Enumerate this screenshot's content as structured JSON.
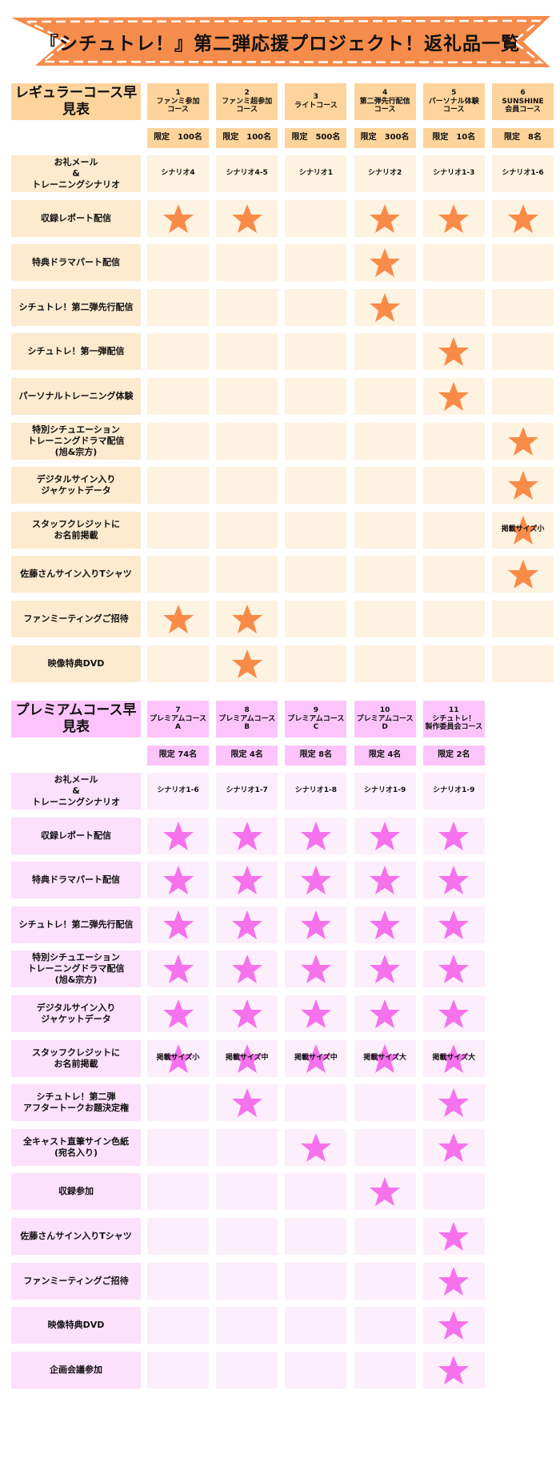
{
  "title": "『シチュトレ！』第二弾応援プロジェクト！返礼品一覧",
  "colors": {
    "banner": "#F68C4B",
    "regular_header": "#FDD49C",
    "regular_label": "#FDEACF",
    "regular_cell": "#FEF2E1",
    "regular_star": "#F98B48",
    "premium_header": "#FCC4FB",
    "premium_label": "#FDE0FC",
    "premium_cell": "#FDEEFC",
    "premium_star": "#F572EC"
  },
  "regular": {
    "title": "レギュラーコース早見表",
    "columns": [
      {
        "num": "1",
        "name": "ファンミ参加\nコース",
        "limit": "限定　100名"
      },
      {
        "num": "2",
        "name": "ファンミ超参加\nコース",
        "limit": "限定　100名"
      },
      {
        "num": "3",
        "name": "ライトコース",
        "limit": "限定　500名"
      },
      {
        "num": "4",
        "name": "第二弾先行配信\nコース",
        "limit": "限定　300名"
      },
      {
        "num": "5",
        "name": "パーソナル体験\nコース",
        "limit": "限定　10名"
      },
      {
        "num": "6",
        "name": "SUNSHINE\n会員コース",
        "limit": "限定　8名"
      }
    ],
    "rows": [
      {
        "label": "お礼メール\n&\nトレーニングシナリオ",
        "cells": [
          "シナリオ4",
          "シナリオ4-5",
          "シナリオ1",
          "シナリオ2",
          "シナリオ1-3",
          "シナリオ1-6"
        ]
      },
      {
        "label": "収録レポート配信",
        "stars": [
          true,
          true,
          false,
          true,
          true,
          true
        ]
      },
      {
        "label": "特典ドラマパート配信",
        "stars": [
          false,
          false,
          false,
          true,
          false,
          false
        ]
      },
      {
        "label": "シチュトレ！第二弾先行配信",
        "stars": [
          false,
          false,
          false,
          true,
          false,
          false
        ]
      },
      {
        "label": "シチュトレ！第一弾配信",
        "stars": [
          false,
          false,
          false,
          false,
          true,
          false
        ]
      },
      {
        "label": "パーソナルトレーニング体験",
        "stars": [
          false,
          false,
          false,
          false,
          true,
          false
        ]
      },
      {
        "label": "特別シチュエーション\nトレーニングドラマ配信\n(旭&宗方)",
        "stars": [
          false,
          false,
          false,
          false,
          false,
          true
        ]
      },
      {
        "label": "デジタルサイン入り\nジャケットデータ",
        "stars": [
          false,
          false,
          false,
          false,
          false,
          true
        ]
      },
      {
        "label": "スタッフクレジットに\nお名前掲載",
        "stars": [
          false,
          false,
          false,
          false,
          false,
          true
        ],
        "notes": [
          "",
          "",
          "",
          "",
          "",
          "掲載サイズ小"
        ]
      },
      {
        "label": "佐藤さんサイン入りTシャツ",
        "stars": [
          false,
          false,
          false,
          false,
          false,
          true
        ]
      },
      {
        "label": "ファンミーティングご招待",
        "stars": [
          true,
          true,
          false,
          false,
          false,
          false
        ]
      },
      {
        "label": "映像特典DVD",
        "stars": [
          false,
          true,
          false,
          false,
          false,
          false
        ]
      }
    ]
  },
  "premium": {
    "title": "プレミアムコース早見表",
    "columns": [
      {
        "num": "7",
        "name": "プレミアムコース\nA",
        "limit": "限定 74名"
      },
      {
        "num": "8",
        "name": "プレミアムコース\nB",
        "limit": "限定 4名"
      },
      {
        "num": "9",
        "name": "プレミアムコース\nC",
        "limit": "限定 8名"
      },
      {
        "num": "10",
        "name": "プレミアムコース\nD",
        "limit": "限定 4名"
      },
      {
        "num": "11",
        "name": "シチュトレ！\n製作委員会コース",
        "limit": "限定 2名"
      }
    ],
    "rows": [
      {
        "label": "お礼メール\n&\nトレーニングシナリオ",
        "cells": [
          "シナリオ1-6",
          "シナリオ1-7",
          "シナリオ1-8",
          "シナリオ1-9",
          "シナリオ1-9"
        ]
      },
      {
        "label": "収録レポート配信",
        "stars": [
          true,
          true,
          true,
          true,
          true
        ]
      },
      {
        "label": "特典ドラマパート配信",
        "stars": [
          true,
          true,
          true,
          true,
          true
        ]
      },
      {
        "label": "シチュトレ！第二弾先行配信",
        "stars": [
          true,
          true,
          true,
          true,
          true
        ]
      },
      {
        "label": "特別シチュエーション\nトレーニングドラマ配信\n(旭&宗方)",
        "stars": [
          true,
          true,
          true,
          true,
          true
        ]
      },
      {
        "label": "デジタルサイン入り\nジャケットデータ",
        "stars": [
          true,
          true,
          true,
          true,
          true
        ]
      },
      {
        "label": "スタッフクレジットに\nお名前掲載",
        "stars": [
          true,
          true,
          true,
          true,
          true
        ],
        "notes": [
          "掲載サイズ小",
          "掲載サイズ中",
          "掲載サイズ中",
          "掲載サイズ大",
          "掲載サイズ大"
        ]
      },
      {
        "label": "シチュトレ！第二弾\nアフタートークお題決定権",
        "stars": [
          false,
          true,
          false,
          false,
          true
        ]
      },
      {
        "label": "全キャスト直筆サイン色紙\n(宛名入り)",
        "stars": [
          false,
          false,
          true,
          false,
          true
        ]
      },
      {
        "label": "収録参加",
        "stars": [
          false,
          false,
          false,
          true,
          false
        ]
      },
      {
        "label": "佐藤さんサイン入りTシャツ",
        "stars": [
          false,
          false,
          false,
          false,
          true
        ]
      },
      {
        "label": "ファンミーティングご招待",
        "stars": [
          false,
          false,
          false,
          false,
          true
        ]
      },
      {
        "label": "映像特典DVD",
        "stars": [
          false,
          false,
          false,
          false,
          true
        ]
      },
      {
        "label": "企画会議参加",
        "stars": [
          false,
          false,
          false,
          false,
          true
        ]
      }
    ]
  }
}
